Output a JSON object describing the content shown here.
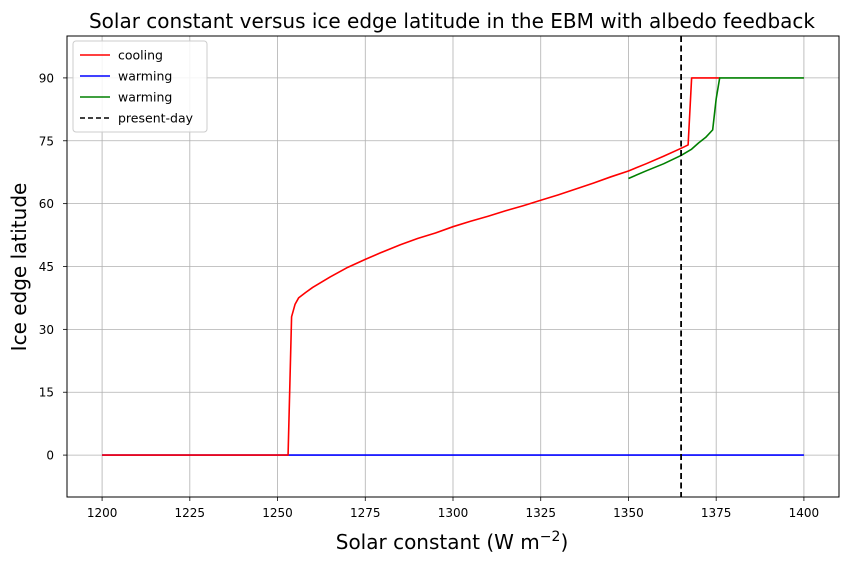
{
  "chart_data": {
    "type": "line",
    "title": "Solar constant versus ice edge latitude in the EBM with albedo feedback",
    "xlabel": "Solar constant (W m",
    "xlabel_sup": "−2",
    "xlabel_end": ")",
    "ylabel": "Ice edge latitude",
    "xlim": [
      1190,
      1410
    ],
    "ylim": [
      -10,
      100
    ],
    "xticks": [
      1200,
      1225,
      1250,
      1275,
      1300,
      1325,
      1350,
      1375,
      1400
    ],
    "yticks": [
      0,
      15,
      30,
      45,
      60,
      75,
      90
    ],
    "grid": true,
    "legend_position": "upper-left",
    "series": [
      {
        "name": "cooling",
        "color": "#ff0000",
        "style": "solid",
        "x": [
          1200,
          1253,
          1254,
          1255,
          1256,
          1258,
          1260,
          1265,
          1270,
          1275,
          1280,
          1285,
          1290,
          1295,
          1300,
          1305,
          1310,
          1315,
          1320,
          1325,
          1330,
          1335,
          1340,
          1345,
          1350,
          1355,
          1360,
          1365,
          1367,
          1368,
          1376
        ],
        "y": [
          0,
          0,
          33,
          36,
          37.5,
          38.8,
          40,
          42.5,
          44.8,
          46.7,
          48.5,
          50.2,
          51.7,
          53,
          54.5,
          55.8,
          57,
          58.3,
          59.5,
          60.8,
          62.1,
          63.5,
          64.9,
          66.4,
          67.8,
          69.5,
          71.3,
          73.2,
          74,
          90,
          90
        ]
      },
      {
        "name": "warming",
        "color": "#0000ff",
        "style": "solid",
        "x": [
          1200,
          1400
        ],
        "y": [
          0,
          0
        ]
      },
      {
        "name": "warming",
        "color": "#008000",
        "style": "solid",
        "x": [
          1350,
          1355,
          1360,
          1365,
          1368,
          1370,
          1372,
          1374,
          1375,
          1376,
          1400
        ],
        "y": [
          66,
          67.8,
          69.5,
          71.5,
          73,
          74.5,
          75.8,
          77.6,
          85,
          90,
          90
        ]
      },
      {
        "name": "present-day",
        "color": "#000000",
        "style": "dashed",
        "vline_x": 1365
      }
    ]
  }
}
